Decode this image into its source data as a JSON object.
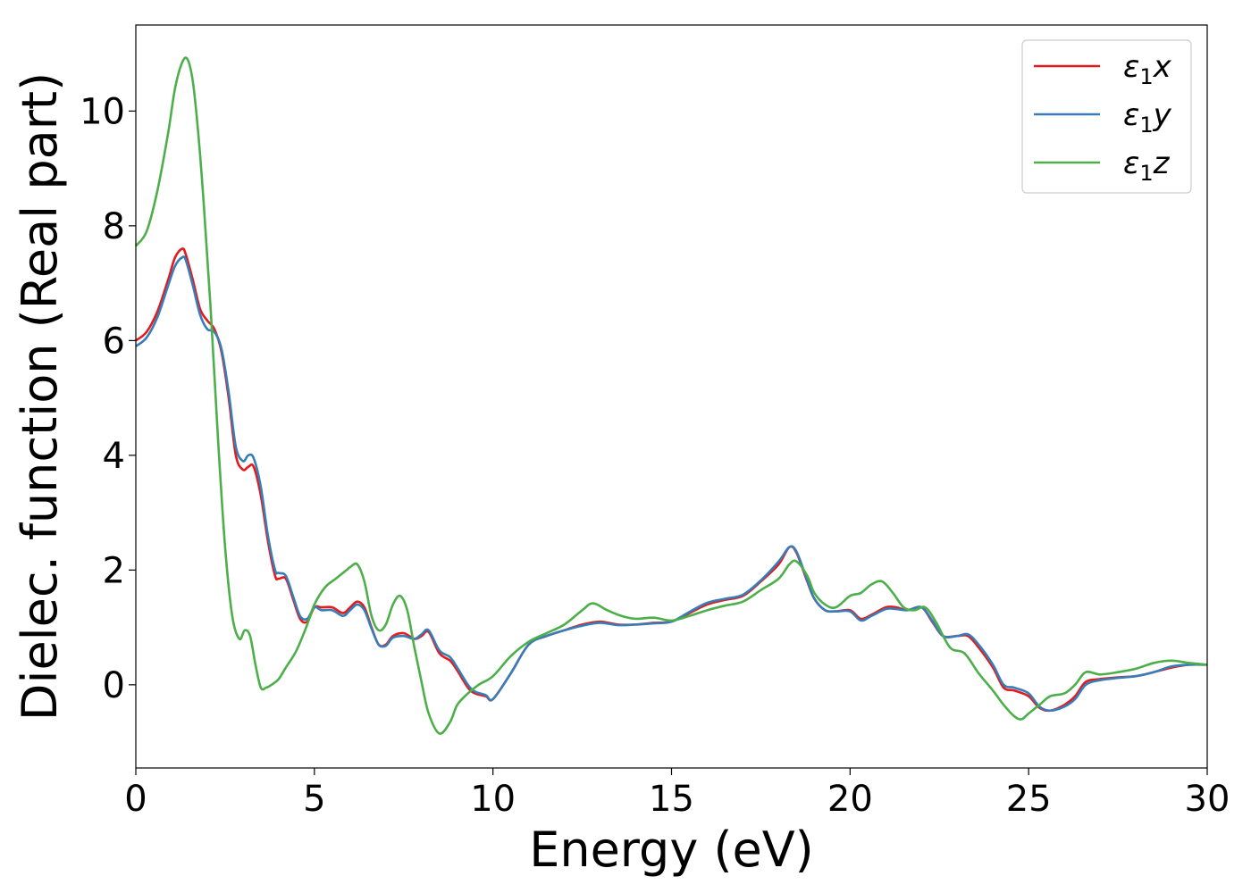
{
  "chart_data": {
    "type": "line",
    "title": "",
    "xlabel": "Energy (eV)",
    "ylabel": "Dielec. function (Real part)",
    "xlim": [
      0,
      30
    ],
    "ylim": [
      -1.45,
      11.5
    ],
    "xticks": [
      0,
      5,
      10,
      15,
      20,
      25,
      30
    ],
    "yticks": [
      0,
      2,
      4,
      6,
      8,
      10
    ],
    "grid": false,
    "legend_position": "top-right",
    "series": [
      {
        "name": "ε₁x",
        "legend_base": "ε",
        "legend_sub": "1",
        "legend_suffix": "x",
        "color": "#e41a1c",
        "x": [
          0,
          0.3,
          0.6,
          0.9,
          1.1,
          1.3,
          1.4,
          1.6,
          1.8,
          2.0,
          2.2,
          2.4,
          2.6,
          2.8,
          3.0,
          3.15,
          3.3,
          3.5,
          3.7,
          3.9,
          4.0,
          4.2,
          4.4,
          4.6,
          4.8,
          5.0,
          5.2,
          5.5,
          5.8,
          6.0,
          6.2,
          6.4,
          6.6,
          6.8,
          7.0,
          7.2,
          7.5,
          7.8,
          8.0,
          8.2,
          8.5,
          8.8,
          9.0,
          9.3,
          9.5,
          9.8,
          10.0,
          10.5,
          11.0,
          11.5,
          12.0,
          12.5,
          13.0,
          13.5,
          14.0,
          14.5,
          15.0,
          15.5,
          16.0,
          16.5,
          17.0,
          17.5,
          18.0,
          18.3,
          18.5,
          18.8,
          19.0,
          19.3,
          19.6,
          20.0,
          20.3,
          20.6,
          21.0,
          21.3,
          21.6,
          22.0,
          22.3,
          22.6,
          23.0,
          23.3,
          23.6,
          24.0,
          24.3,
          24.6,
          25.0,
          25.3,
          25.6,
          26.0,
          26.3,
          26.6,
          27.0,
          27.5,
          28.0,
          28.5,
          29.0,
          29.5,
          30.0
        ],
        "y": [
          6.0,
          6.15,
          6.5,
          7.05,
          7.45,
          7.6,
          7.5,
          7.05,
          6.55,
          6.35,
          6.2,
          5.8,
          5.0,
          4.0,
          3.75,
          3.8,
          3.8,
          3.3,
          2.5,
          1.9,
          1.85,
          1.85,
          1.5,
          1.15,
          1.1,
          1.35,
          1.35,
          1.35,
          1.25,
          1.35,
          1.45,
          1.35,
          1.0,
          0.7,
          0.7,
          0.85,
          0.9,
          0.8,
          0.85,
          0.92,
          0.55,
          0.42,
          0.25,
          -0.05,
          -0.15,
          -0.2,
          -0.25,
          0.2,
          0.7,
          0.85,
          0.95,
          1.05,
          1.1,
          1.05,
          1.05,
          1.08,
          1.1,
          1.25,
          1.4,
          1.48,
          1.55,
          1.8,
          2.1,
          2.4,
          2.3,
          1.8,
          1.5,
          1.3,
          1.28,
          1.3,
          1.15,
          1.22,
          1.35,
          1.35,
          1.3,
          1.35,
          1.1,
          0.85,
          0.85,
          0.85,
          0.65,
          0.3,
          -0.05,
          -0.1,
          -0.2,
          -0.4,
          -0.45,
          -0.35,
          -0.2,
          0.05,
          0.1,
          0.13,
          0.15,
          0.22,
          0.3,
          0.35,
          0.35
        ]
      },
      {
        "name": "ε₁y",
        "legend_base": "ε",
        "legend_sub": "1",
        "legend_suffix": "y",
        "color": "#377eb8",
        "x": [
          0,
          0.3,
          0.6,
          0.9,
          1.1,
          1.3,
          1.4,
          1.6,
          1.8,
          2.0,
          2.2,
          2.4,
          2.6,
          2.8,
          3.0,
          3.15,
          3.3,
          3.5,
          3.7,
          3.9,
          4.0,
          4.2,
          4.4,
          4.6,
          4.8,
          5.0,
          5.2,
          5.5,
          5.8,
          6.0,
          6.2,
          6.4,
          6.6,
          6.8,
          7.0,
          7.2,
          7.5,
          7.8,
          8.0,
          8.2,
          8.5,
          8.8,
          9.0,
          9.3,
          9.5,
          9.8,
          10.0,
          10.5,
          11.0,
          11.5,
          12.0,
          12.5,
          13.0,
          13.5,
          14.0,
          14.5,
          15.0,
          15.5,
          16.0,
          16.5,
          17.0,
          17.5,
          18.0,
          18.3,
          18.5,
          18.8,
          19.0,
          19.3,
          19.6,
          20.0,
          20.3,
          20.6,
          21.0,
          21.3,
          21.6,
          22.0,
          22.3,
          22.6,
          23.0,
          23.3,
          23.6,
          24.0,
          24.3,
          24.6,
          25.0,
          25.3,
          25.6,
          26.0,
          26.3,
          26.6,
          27.0,
          27.5,
          28.0,
          28.5,
          29.0,
          29.5,
          30.0
        ],
        "y": [
          5.9,
          6.05,
          6.4,
          6.95,
          7.3,
          7.45,
          7.4,
          6.95,
          6.45,
          6.2,
          6.15,
          5.85,
          5.1,
          4.15,
          3.9,
          4.0,
          3.95,
          3.45,
          2.6,
          2.0,
          1.95,
          1.9,
          1.55,
          1.2,
          1.15,
          1.35,
          1.3,
          1.3,
          1.2,
          1.3,
          1.4,
          1.3,
          0.98,
          0.7,
          0.68,
          0.82,
          0.85,
          0.8,
          0.88,
          0.95,
          0.6,
          0.48,
          0.3,
          0.0,
          -0.12,
          -0.18,
          -0.25,
          0.2,
          0.7,
          0.85,
          0.95,
          1.03,
          1.08,
          1.04,
          1.05,
          1.07,
          1.1,
          1.27,
          1.43,
          1.5,
          1.57,
          1.82,
          2.15,
          2.4,
          2.32,
          1.82,
          1.5,
          1.3,
          1.28,
          1.28,
          1.12,
          1.2,
          1.32,
          1.32,
          1.3,
          1.35,
          1.12,
          0.85,
          0.85,
          0.88,
          0.7,
          0.35,
          0.0,
          -0.05,
          -0.15,
          -0.38,
          -0.45,
          -0.38,
          -0.25,
          0.0,
          0.08,
          0.12,
          0.15,
          0.22,
          0.32,
          0.35,
          0.35
        ]
      },
      {
        "name": "ε₁z",
        "legend_base": "ε",
        "legend_sub": "1",
        "legend_suffix": "z",
        "color": "#4daf4a",
        "x": [
          0,
          0.3,
          0.6,
          0.9,
          1.1,
          1.3,
          1.45,
          1.6,
          1.75,
          1.9,
          2.1,
          2.3,
          2.5,
          2.7,
          2.9,
          3.05,
          3.2,
          3.35,
          3.5,
          3.65,
          3.8,
          4.0,
          4.2,
          4.5,
          4.8,
          5.0,
          5.3,
          5.6,
          5.9,
          6.0,
          6.2,
          6.4,
          6.6,
          6.8,
          7.0,
          7.2,
          7.4,
          7.6,
          7.8,
          8.0,
          8.2,
          8.5,
          8.8,
          9.0,
          9.3,
          9.6,
          10.0,
          10.5,
          11.0,
          11.5,
          12.0,
          12.5,
          12.8,
          13.2,
          13.6,
          14.0,
          14.5,
          15.0,
          15.5,
          16.0,
          16.5,
          17.0,
          17.5,
          18.0,
          18.3,
          18.5,
          18.8,
          19.0,
          19.3,
          19.6,
          20.0,
          20.3,
          20.6,
          20.9,
          21.2,
          21.5,
          21.8,
          22.1,
          22.4,
          22.8,
          23.2,
          23.6,
          24.0,
          24.3,
          24.6,
          24.8,
          25.0,
          25.3,
          25.6,
          26.0,
          26.3,
          26.6,
          27.0,
          27.5,
          28.0,
          28.5,
          29.0,
          29.5,
          30.0
        ],
        "y": [
          7.65,
          7.9,
          8.6,
          9.6,
          10.4,
          10.85,
          10.9,
          10.5,
          9.6,
          8.4,
          6.5,
          4.3,
          2.4,
          1.2,
          0.8,
          0.95,
          0.85,
          0.35,
          -0.05,
          -0.05,
          0.0,
          0.1,
          0.3,
          0.6,
          1.05,
          1.4,
          1.7,
          1.85,
          2.0,
          2.05,
          2.1,
          1.8,
          1.2,
          0.95,
          1.05,
          1.4,
          1.55,
          1.3,
          0.65,
          0.05,
          -0.5,
          -0.85,
          -0.65,
          -0.35,
          -0.15,
          0.0,
          0.15,
          0.5,
          0.75,
          0.9,
          1.05,
          1.3,
          1.42,
          1.3,
          1.2,
          1.15,
          1.17,
          1.12,
          1.2,
          1.3,
          1.38,
          1.45,
          1.65,
          1.85,
          2.1,
          2.15,
          1.9,
          1.6,
          1.4,
          1.35,
          1.55,
          1.6,
          1.75,
          1.8,
          1.6,
          1.35,
          1.3,
          1.35,
          1.1,
          0.65,
          0.55,
          0.2,
          -0.1,
          -0.35,
          -0.55,
          -0.6,
          -0.5,
          -0.35,
          -0.2,
          -0.15,
          0.0,
          0.22,
          0.18,
          0.22,
          0.28,
          0.38,
          0.42,
          0.38,
          0.35
        ]
      }
    ]
  }
}
